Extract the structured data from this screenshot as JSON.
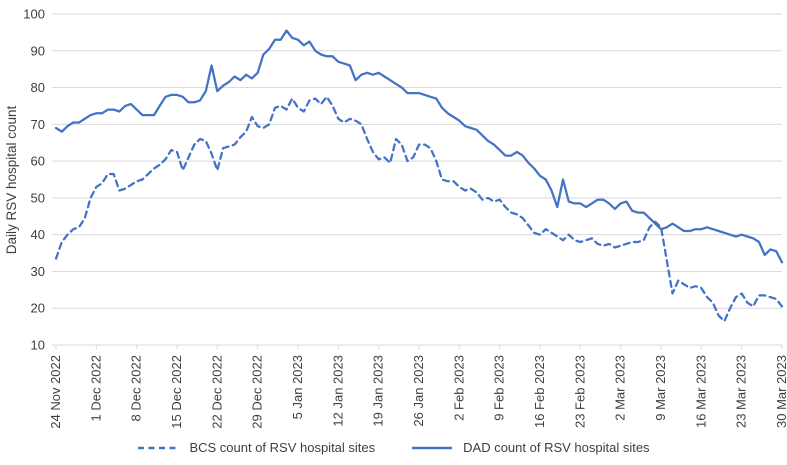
{
  "chart_data": {
    "type": "line",
    "title": "",
    "ylabel": "Daily RSV hospital count",
    "ylim": [
      10,
      100
    ],
    "y_ticks": [
      10,
      20,
      30,
      40,
      50,
      60,
      70,
      80,
      90,
      100
    ],
    "grid": "horizontal",
    "legend_position": "bottom",
    "x_tick_interval_days": 7,
    "x_tick_labels": [
      "24 Nov 2022",
      "1 Dec 2022",
      "8 Dec 2022",
      "15 Dec 2022",
      "22 Dec 2022",
      "29 Dec 2022",
      "5 Jan 2023",
      "12 Jan 2023",
      "19 Jan 2023",
      "26 Jan 2023",
      "2 Feb 2023",
      "9 Feb 2023",
      "16 Feb 2023",
      "23 Feb 2023",
      "2 Mar 2023",
      "9 Mar 2023",
      "16 Mar 2023",
      "23 Mar 2023",
      "30 Mar 2023"
    ],
    "series": [
      {
        "name": "BCS count of RSV hospital sites",
        "style": "dashed",
        "color": "#4472C4",
        "values": [
          33.5,
          38,
          40,
          41.5,
          42,
          44.5,
          50,
          53,
          54,
          56.5,
          56.5,
          52,
          52.5,
          53.5,
          54.5,
          55,
          56.5,
          58,
          59,
          60.5,
          63,
          62.5,
          57.5,
          61,
          64.5,
          66,
          65.5,
          62,
          57.5,
          63.5,
          64,
          64.5,
          66.5,
          68,
          72,
          69.5,
          69,
          70,
          74.5,
          75,
          74,
          77,
          74.5,
          73.5,
          76.5,
          77,
          75.5,
          77.5,
          75,
          71.5,
          70.5,
          71.5,
          71,
          70,
          66,
          62.5,
          60.5,
          61,
          59.5,
          66,
          64.5,
          60,
          61,
          64.5,
          64.5,
          63.5,
          60,
          55,
          54.5,
          54.5,
          53,
          52,
          52.5,
          51.5,
          49.5,
          50,
          49,
          49.5,
          47.5,
          46,
          45.5,
          44.5,
          42.5,
          40.5,
          40,
          41.5,
          40.5,
          39.5,
          38.5,
          40,
          38.5,
          38,
          38.5,
          39,
          37.5,
          37,
          37.5,
          36.5,
          37,
          37.5,
          38,
          38,
          38.5,
          42,
          43.5,
          42,
          33,
          24,
          27.5,
          26.5,
          25.5,
          26,
          25.5,
          23,
          21.5,
          18,
          16.5,
          20,
          23,
          24,
          21.5,
          20.5,
          23.5,
          23.5,
          23,
          22.5,
          20.5
        ]
      },
      {
        "name": "DAD count of RSV hospital sites",
        "style": "solid",
        "color": "#4472C4",
        "values": [
          69,
          68,
          69.5,
          70.5,
          70.5,
          71.5,
          72.5,
          73,
          73,
          74,
          74,
          73.5,
          75,
          75.5,
          74,
          72.5,
          72.5,
          72.5,
          75,
          77.5,
          78,
          78,
          77.5,
          76,
          76,
          76.5,
          79,
          86,
          79,
          80.5,
          81.5,
          83,
          82,
          83.5,
          82.5,
          84,
          89,
          90.5,
          93,
          93,
          95.5,
          93.5,
          93,
          91.5,
          92.5,
          90,
          89,
          88.5,
          88.5,
          87,
          86.5,
          86,
          82,
          83.5,
          84,
          83.5,
          84,
          83,
          82,
          81,
          80,
          78.5,
          78.5,
          78.5,
          78,
          77.5,
          77,
          74.5,
          73,
          72,
          71,
          69.5,
          69,
          68.5,
          67,
          65.5,
          64.5,
          63,
          61.5,
          61.5,
          62.5,
          61.5,
          59.5,
          58,
          56,
          55,
          52,
          47.5,
          55,
          49,
          48.5,
          48.5,
          47.5,
          48.5,
          49.5,
          49.5,
          48.5,
          47,
          48.5,
          49,
          46.5,
          46,
          46,
          44.5,
          43,
          41.5,
          42,
          43,
          42,
          41,
          41,
          41.5,
          41.5,
          42,
          41.5,
          41,
          40.5,
          40,
          39.5,
          40,
          39.5,
          39,
          38,
          34.5,
          36,
          35.5,
          32.5
        ]
      }
    ]
  },
  "colors": {
    "line": "#4472C4",
    "grid": "#D9D9D9",
    "text": "#3F3F3F"
  }
}
